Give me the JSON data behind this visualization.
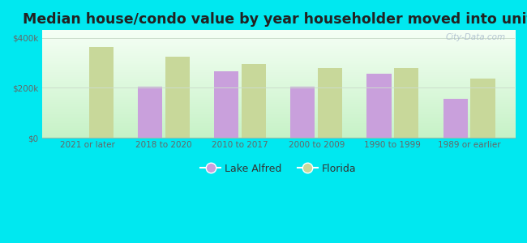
{
  "title": "Median house/condo value by year householder moved into unit",
  "categories": [
    "2021 or later",
    "2018 to 2020",
    "2010 to 2017",
    "2000 to 2009",
    "1990 to 1999",
    "1989 or earlier"
  ],
  "lake_alfred": [
    null,
    205000,
    265000,
    205000,
    255000,
    155000
  ],
  "florida": [
    362000,
    325000,
    295000,
    278000,
    278000,
    238000
  ],
  "lake_alfred_color": "#c9a0dc",
  "florida_color": "#c8d89a",
  "background_outer": "#00e8f0",
  "background_inner_top": "#f5fff5",
  "background_inner_bottom": "#d0f0d0",
  "ylim": [
    0,
    430000
  ],
  "yticks": [
    0,
    200000,
    400000
  ],
  "ytick_labels": [
    "$0",
    "$200k",
    "$400k"
  ],
  "legend_lake_alfred": "Lake Alfred",
  "legend_florida": "Florida",
  "bar_width": 0.32,
  "title_fontsize": 12.5,
  "watermark_text": "City-Data.com",
  "grid_color": "#ccddcc",
  "spine_color": "#99bbaa",
  "tick_color": "#666666"
}
